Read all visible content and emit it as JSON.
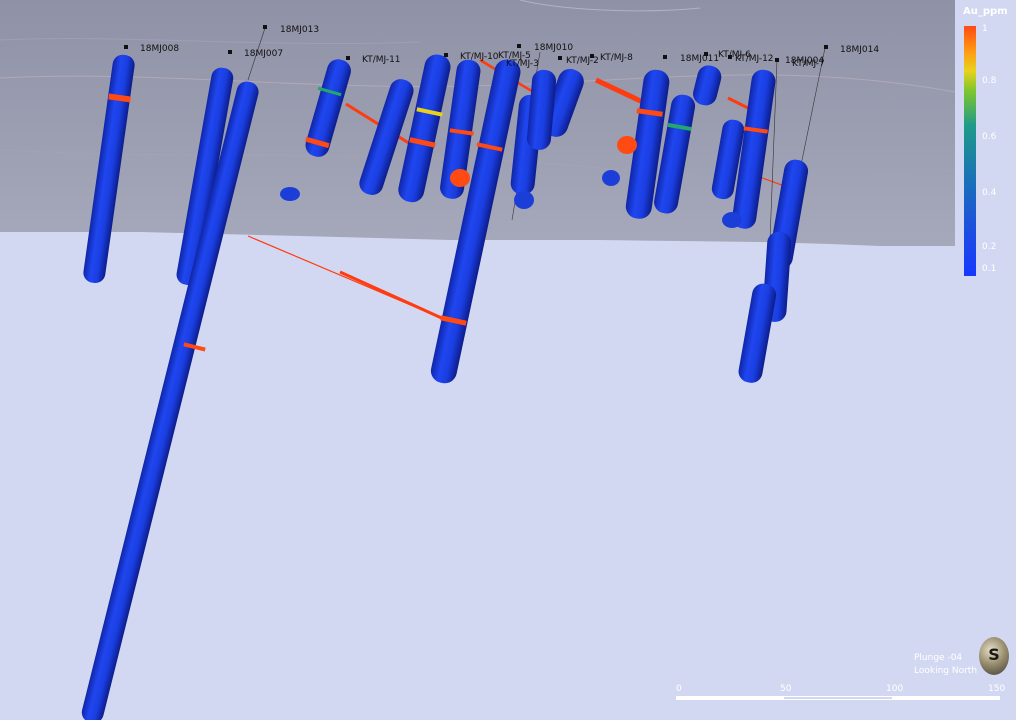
{
  "legend": {
    "title": "Au_ppm",
    "ticks": [
      "1",
      "0.8",
      "0.6",
      "0.4",
      "0.2",
      "0.1"
    ]
  },
  "view_info": {
    "plunge": "Plunge  -04",
    "looking": "Looking North"
  },
  "compass_icon": "compass-icon",
  "scale_bar": {
    "labels": [
      "0",
      "50",
      "100",
      "150"
    ]
  },
  "collar_labels": {
    "mj008": "18MJ008",
    "mj007": "18MJ007",
    "mj013": "18MJ013",
    "kt11": "KT/MJ-11",
    "kt10": "KT/MJ-10",
    "mj010": "18MJ010",
    "kt5": "KT/MJ-5",
    "kt3": "KT/MJ-3",
    "kt2": "KT/MJ-2",
    "kt8": "KT/MJ-8",
    "mj011": "18MJ011",
    "kt6": "KT/MJ-6",
    "kt12": "KT/MJ-12",
    "mj004": "18MJ004",
    "kt7": "KT/MJ-7",
    "mj014": "18MJ014"
  },
  "colors": {
    "background": "#d3d8f2",
    "terrain": "#9ea0b4",
    "drillhole_low": "#1638e8",
    "drillhole_high": "#ff4a14"
  }
}
